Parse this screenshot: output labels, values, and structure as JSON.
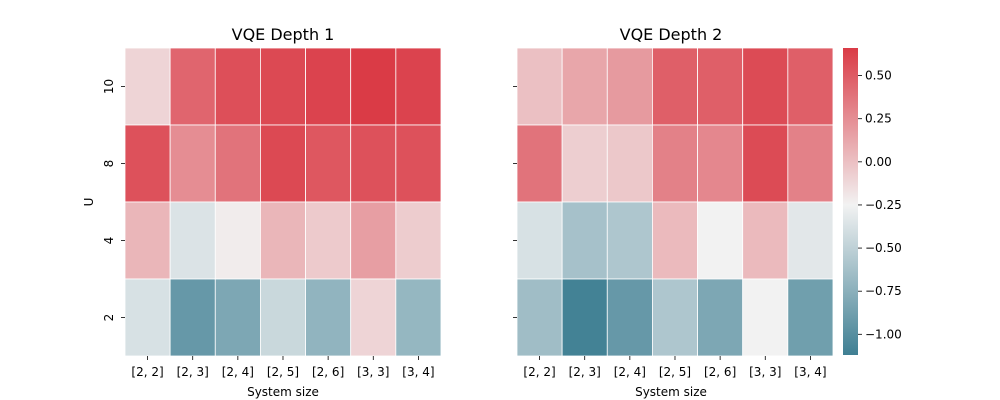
{
  "chart_data": {
    "type": "heatmap",
    "colorscale": {
      "low": "#3f7f93",
      "mid": "#f2f2f2",
      "high": "#da3b46",
      "vmin": -1.12,
      "vcenter": -0.25,
      "vmax": 0.66,
      "ticks": [
        -1.0,
        -0.75,
        -0.5,
        -0.25,
        0.0,
        0.25,
        0.5
      ],
      "tick_labels": [
        "−1.00",
        "−0.75",
        "−0.50",
        "−0.25",
        "0.00",
        "0.25",
        "0.50"
      ]
    },
    "xlabel": "System size",
    "ylabel": "U",
    "x_categories": [
      "[2, 2]",
      "[2, 3]",
      "[2, 4]",
      "[2, 5]",
      "[2, 6]",
      "[3, 3]",
      "[3, 4]"
    ],
    "y_categories": [
      "10",
      "8",
      "4",
      "2"
    ],
    "panels": [
      {
        "title": "VQE Depth 1",
        "values": [
          [
            -0.1,
            0.45,
            0.56,
            0.59,
            0.62,
            0.66,
            0.62
          ],
          [
            0.55,
            0.25,
            0.38,
            0.59,
            0.52,
            0.55,
            0.55
          ],
          [
            0.05,
            -0.36,
            -0.22,
            0.05,
            -0.05,
            0.17,
            -0.06
          ],
          [
            -0.38,
            -0.93,
            -0.82,
            -0.45,
            -0.72,
            -0.1,
            -0.7
          ]
        ]
      },
      {
        "title": "VQE Depth 2",
        "values": [
          [
            0.0,
            0.13,
            0.19,
            0.48,
            0.48,
            0.58,
            0.48
          ],
          [
            0.38,
            -0.07,
            -0.04,
            0.31,
            0.28,
            0.58,
            0.31
          ],
          [
            -0.38,
            -0.62,
            -0.58,
            0.03,
            -0.25,
            0.03,
            -0.33
          ],
          [
            -0.65,
            -1.1,
            -0.93,
            -0.58,
            -0.82,
            -0.25,
            -0.88
          ]
        ]
      }
    ]
  }
}
